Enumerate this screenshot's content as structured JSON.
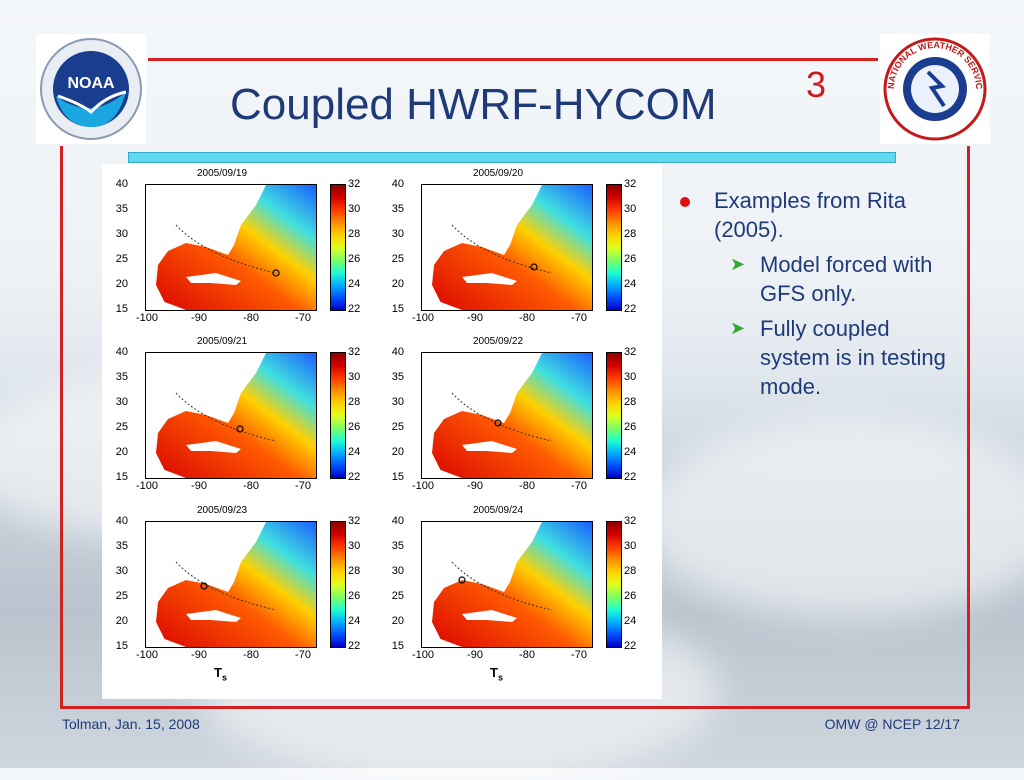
{
  "slide": {
    "title": "Coupled HWRF-HYCOM",
    "number": "3"
  },
  "logos": {
    "left": "NOAA",
    "right": "NATIONAL WEATHER SERVICE"
  },
  "figure": {
    "panels": [
      {
        "date": "2005/09/19"
      },
      {
        "date": "2005/09/20"
      },
      {
        "date": "2005/09/21"
      },
      {
        "date": "2005/09/22"
      },
      {
        "date": "2005/09/23"
      },
      {
        "date": "2005/09/24"
      }
    ],
    "y_ticks": [
      "40",
      "35",
      "30",
      "25",
      "20",
      "15"
    ],
    "x_ticks": [
      "-100",
      "-90",
      "-80",
      "-70"
    ],
    "colorbar_ticks": [
      "32",
      "30",
      "28",
      "26",
      "24",
      "22"
    ],
    "variable_label": "T",
    "variable_sub": "s"
  },
  "bullets": {
    "main": "Examples from Rita (2005).",
    "sub": [
      "Model forced with GFS only.",
      "Fully coupled system is in testing mode."
    ]
  },
  "footer": {
    "left": "Tolman, Jan. 15, 2008",
    "right": "OMW @ NCEP 12/17"
  },
  "colors": {
    "title": "#1f3a78",
    "accent_red": "#d42020",
    "cyan": "#5fd9ef",
    "bullet_green": "#3aa63a"
  }
}
